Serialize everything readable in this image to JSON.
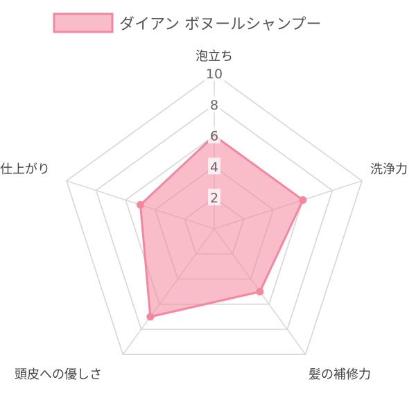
{
  "chart_data": {
    "type": "radar",
    "legend": {
      "placement": "top-center",
      "entries": [
        "ダイアン ボヌールシャンプー"
      ]
    },
    "axes": [
      "泡立ち",
      "洗浄力",
      "髪の補修力",
      "頭皮への優しさ",
      "仕上がり"
    ],
    "ticks": [
      "2",
      "4",
      "6",
      "8",
      "10"
    ],
    "range": [
      0,
      10
    ],
    "grid": true,
    "series": [
      {
        "name": "ダイアン ボヌールシャンプー",
        "values": [
          6,
          6,
          5,
          7,
          5
        ],
        "color": "#f4879f",
        "fill": "rgba(244,135,159,0.55)"
      }
    ]
  }
}
